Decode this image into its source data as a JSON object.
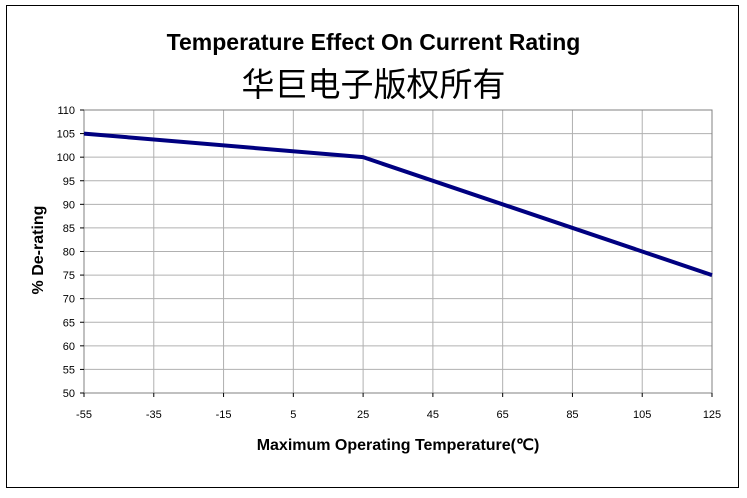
{
  "chart_data": {
    "type": "line",
    "title": "Temperature Effect On Current Rating",
    "subtitle": "华巨电子版权所有",
    "xlabel": "Maximum Operating Temperature(℃)",
    "ylabel": "% De-rating",
    "x_ticks": [
      -55,
      -35,
      -15,
      5,
      25,
      45,
      65,
      85,
      105,
      125
    ],
    "y_ticks": [
      50,
      55,
      60,
      65,
      70,
      75,
      80,
      85,
      90,
      95,
      100,
      105,
      110
    ],
    "xlim": [
      -55,
      125
    ],
    "ylim": [
      50,
      110
    ],
    "grid": true,
    "line_color": "#000080",
    "series": [
      {
        "x": [
          -55,
          25,
          125
        ],
        "values": [
          105,
          100,
          75
        ]
      }
    ]
  }
}
